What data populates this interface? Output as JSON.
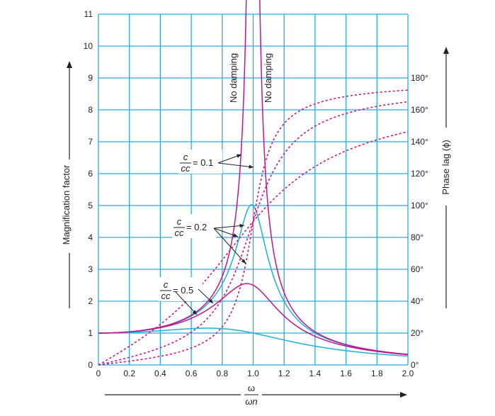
{
  "chart_data": {
    "type": "line",
    "xlabel_num": "ω",
    "xlabel_den": "ωn",
    "ylabel_left": "Magnification  factor",
    "ylabel_right": "Phase lag (ϕ)",
    "x_ticks": [
      "0",
      "0.2",
      "0.4",
      "0.6",
      "0.8",
      "1.0",
      "1.2",
      "1.4",
      "1.6",
      "1.8",
      "2.0"
    ],
    "y_ticks_left": [
      "0",
      "1",
      "2",
      "3",
      "4",
      "5",
      "6",
      "7",
      "8",
      "9",
      "10",
      "11"
    ],
    "y_ticks_right": [
      "0°",
      "20°",
      "40°",
      "60°",
      "80°",
      "100°",
      "120°",
      "140°",
      "160°",
      "180°"
    ],
    "xlim": [
      0,
      2.0
    ],
    "ylim_left": [
      0,
      11
    ],
    "ylim_right_deg": [
      0,
      220
    ],
    "grid": true,
    "annotations": {
      "no_damping": "No damping",
      "ratio_num": "c",
      "ratio_den": "cc",
      "r01": "= 0.1",
      "r02": "= 0.2",
      "r05": "= 0.5"
    },
    "colors": {
      "grid": "#29abe2",
      "blue_curve": "#1fb0d6",
      "magenta_curve": "#c0168c",
      "phase_dotted": "#d4147f",
      "annotation": "#222222"
    },
    "series": [
      {
        "damping_ratio": 0.1,
        "kind": "magnification"
      },
      {
        "damping_ratio": 0.2,
        "kind": "magnification"
      },
      {
        "damping_ratio": 0.5,
        "kind": "magnification"
      },
      {
        "damping_ratio": 0.0,
        "kind": "magnification"
      },
      {
        "damping_ratio": 0.1,
        "kind": "phase"
      },
      {
        "damping_ratio": 0.2,
        "kind": "phase"
      },
      {
        "damping_ratio": 0.5,
        "kind": "phase"
      }
    ]
  }
}
